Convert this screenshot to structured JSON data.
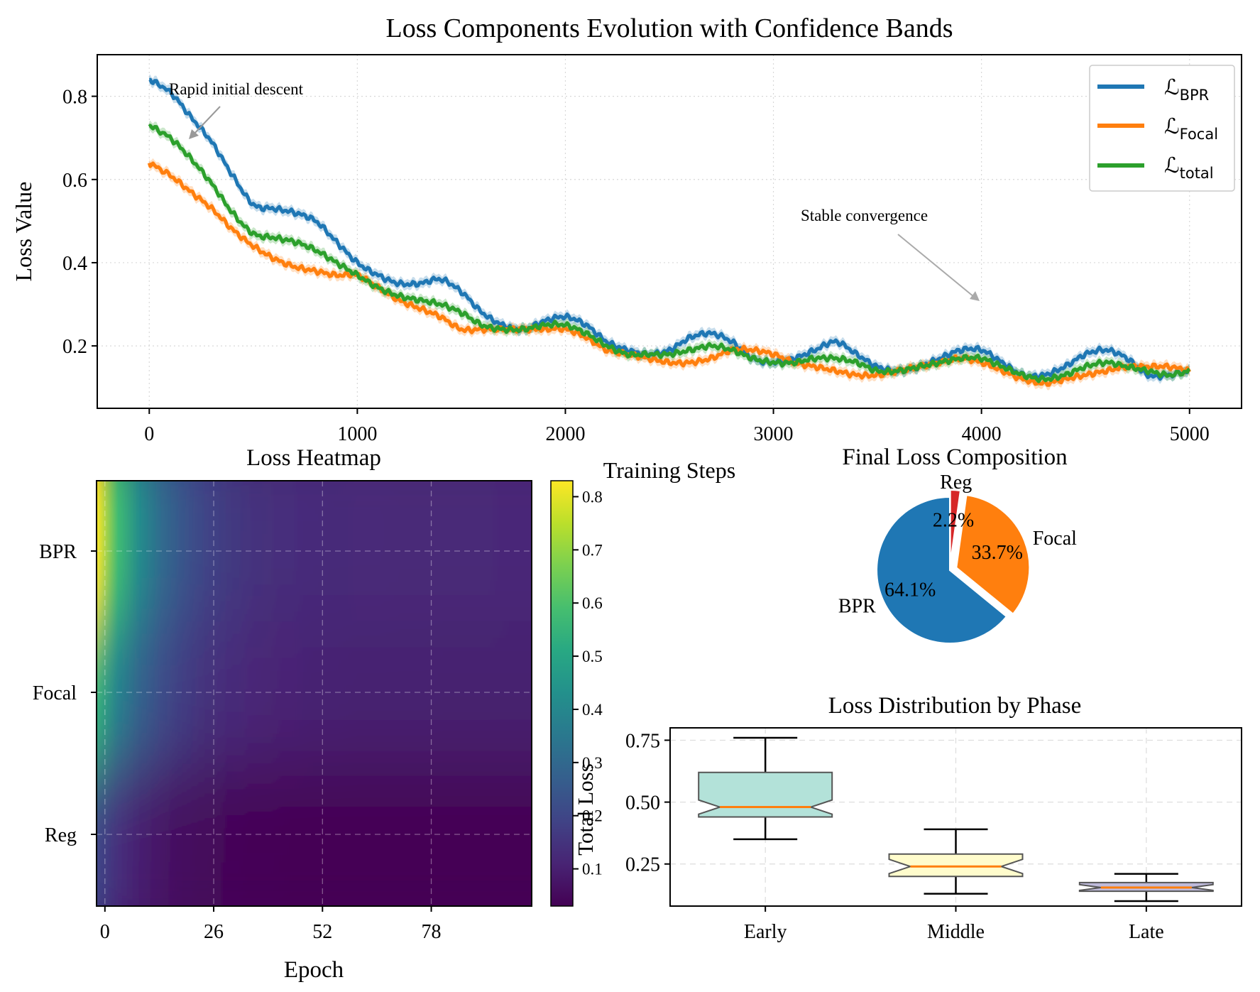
{
  "chart_data": [
    {
      "type": "line",
      "title": "Loss Components Evolution with Confidence Bands",
      "xlabel": "Training Steps",
      "ylabel": "Loss Value",
      "xlim": [
        -250,
        5250
      ],
      "ylim": [
        0.05,
        0.9
      ],
      "xticks": [
        0,
        1000,
        2000,
        3000,
        4000,
        5000
      ],
      "yticks": [
        0.2,
        0.4,
        0.6,
        0.8
      ],
      "grid": true,
      "legend_position": "top-right",
      "x": [
        0,
        100,
        200,
        300,
        400,
        500,
        600,
        700,
        800,
        900,
        1000,
        1100,
        1200,
        1300,
        1400,
        1500,
        1600,
        1700,
        1800,
        1900,
        2000,
        2100,
        2200,
        2300,
        2400,
        2500,
        2600,
        2700,
        2800,
        2900,
        3000,
        3100,
        3200,
        3300,
        3400,
        3500,
        3600,
        3700,
        3800,
        3900,
        4000,
        4100,
        4200,
        4300,
        4400,
        4500,
        4600,
        4700,
        4800,
        4900,
        5000
      ],
      "series": [
        {
          "name": "BPR",
          "label_main": "ℒ",
          "label_sub": "BPR",
          "color": "#1f77b4",
          "values": [
            0.84,
            0.81,
            0.75,
            0.69,
            0.61,
            0.54,
            0.53,
            0.52,
            0.5,
            0.45,
            0.4,
            0.37,
            0.35,
            0.35,
            0.36,
            0.33,
            0.28,
            0.25,
            0.24,
            0.26,
            0.27,
            0.25,
            0.21,
            0.19,
            0.18,
            0.19,
            0.22,
            0.23,
            0.21,
            0.17,
            0.16,
            0.17,
            0.19,
            0.21,
            0.18,
            0.15,
            0.14,
            0.15,
            0.17,
            0.19,
            0.19,
            0.16,
            0.13,
            0.13,
            0.15,
            0.18,
            0.19,
            0.17,
            0.13,
            0.13,
            0.14
          ]
        },
        {
          "name": "Focal",
          "label_main": "ℒ",
          "label_sub": "Focal",
          "color": "#ff7f0e",
          "values": [
            0.64,
            0.61,
            0.57,
            0.53,
            0.48,
            0.44,
            0.41,
            0.39,
            0.38,
            0.37,
            0.37,
            0.34,
            0.31,
            0.29,
            0.27,
            0.24,
            0.24,
            0.24,
            0.24,
            0.24,
            0.24,
            0.22,
            0.19,
            0.18,
            0.17,
            0.16,
            0.16,
            0.17,
            0.19,
            0.19,
            0.18,
            0.16,
            0.15,
            0.14,
            0.13,
            0.13,
            0.14,
            0.15,
            0.16,
            0.17,
            0.16,
            0.14,
            0.12,
            0.11,
            0.12,
            0.13,
            0.14,
            0.15,
            0.15,
            0.15,
            0.14
          ]
        },
        {
          "name": "total",
          "label_main": "ℒ",
          "label_sub": "total",
          "color": "#2ca02c",
          "values": [
            0.73,
            0.7,
            0.65,
            0.59,
            0.52,
            0.47,
            0.46,
            0.45,
            0.43,
            0.4,
            0.37,
            0.34,
            0.32,
            0.31,
            0.3,
            0.28,
            0.25,
            0.24,
            0.24,
            0.25,
            0.25,
            0.23,
            0.2,
            0.18,
            0.18,
            0.18,
            0.19,
            0.2,
            0.19,
            0.17,
            0.16,
            0.16,
            0.17,
            0.17,
            0.16,
            0.14,
            0.14,
            0.15,
            0.16,
            0.17,
            0.17,
            0.15,
            0.13,
            0.12,
            0.13,
            0.15,
            0.16,
            0.15,
            0.14,
            0.13,
            0.14
          ]
        }
      ],
      "annotations": [
        {
          "text": "Rapid initial descent",
          "x": 100,
          "y": 0.8,
          "arrow_to_x": 230,
          "arrow_to_y": 0.7
        },
        {
          "text": "Stable convergence",
          "x": 3500,
          "y": 0.5,
          "arrow_to_x": 4000,
          "arrow_to_y": 0.3
        }
      ]
    },
    {
      "type": "heatmap",
      "title": "Loss Heatmap",
      "xlabel": "Epoch",
      "ylabel": "",
      "rows": [
        "BPR",
        "Focal",
        "Reg"
      ],
      "xticks": [
        0,
        26,
        52,
        78
      ],
      "xlim": [
        -2,
        102
      ],
      "colorbar_label": "Total Loss",
      "colorbar_ticks": [
        0.1,
        0.2,
        0.3,
        0.4,
        0.5,
        0.6,
        0.7,
        0.8
      ],
      "colorbar_range": [
        0.03,
        0.83
      ],
      "row_start_values": [
        0.84,
        0.55,
        0.2
      ],
      "row_end_values": [
        0.12,
        0.1,
        0.03
      ],
      "colormap": "viridis"
    },
    {
      "type": "pie",
      "title": "Final Loss Composition",
      "slices": [
        {
          "label": "BPR",
          "percent": 64.1,
          "pct_text": "64.1%",
          "color": "#1f77b4",
          "explode": false
        },
        {
          "label": "Focal",
          "percent": 33.7,
          "pct_text": "33.7%",
          "color": "#ff7f0e",
          "explode": true
        },
        {
          "label": "Reg",
          "percent": 2.2,
          "pct_text": "2.2%",
          "color": "#d62728",
          "explode": true
        }
      ]
    },
    {
      "type": "box",
      "title": "Loss Distribution by Phase",
      "categories": [
        "Early",
        "Middle",
        "Late"
      ],
      "ylim": [
        0.08,
        0.8
      ],
      "yticks": [
        0.25,
        0.5,
        0.75
      ],
      "ytick_labels": [
        "0.25",
        "0.50",
        "0.75"
      ],
      "boxes": [
        {
          "label": "Early",
          "color": "#b3e2d9",
          "whislo": 0.35,
          "q1": 0.44,
          "med": 0.48,
          "q3": 0.62,
          "whishi": 0.76
        },
        {
          "label": "Middle",
          "color": "#fffccc",
          "whislo": 0.13,
          "q1": 0.2,
          "med": 0.24,
          "q3": 0.29,
          "whishi": 0.39
        },
        {
          "label": "Late",
          "color": "#bebada",
          "whislo": 0.1,
          "q1": 0.14,
          "med": 0.155,
          "q3": 0.175,
          "whishi": 0.21
        }
      ]
    }
  ]
}
